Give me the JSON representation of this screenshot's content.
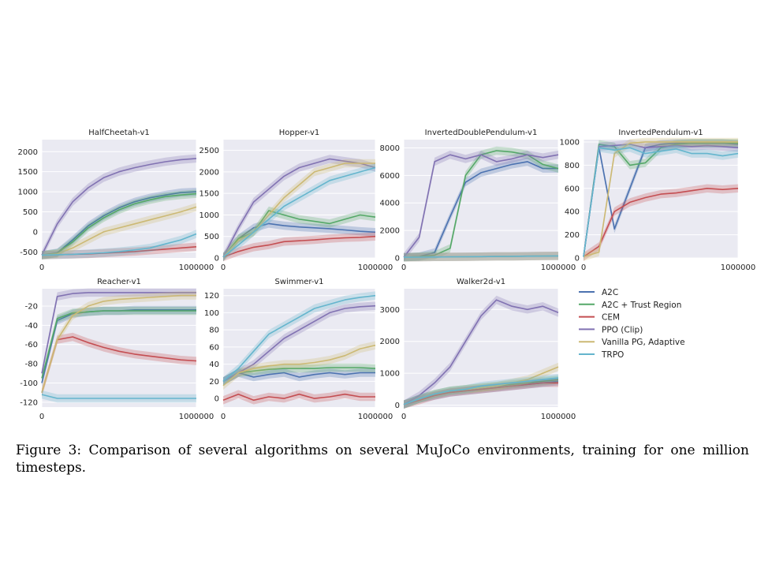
{
  "figure": {
    "caption": "Figure 3: Comparison of several algorithms on several MuJoCo environments, training for one million timesteps.",
    "legend": [
      {
        "name": "A2C",
        "color": "#4c72b0"
      },
      {
        "name": "A2C + Trust Region",
        "color": "#55a868"
      },
      {
        "name": "CEM",
        "color": "#c44e52"
      },
      {
        "name": "PPO (Clip)",
        "color": "#8172b2"
      },
      {
        "name": "Vanilla PG, Adaptive",
        "color": "#ccb974"
      },
      {
        "name": "TRPO",
        "color": "#64b5cd"
      }
    ],
    "colors": {
      "panel_bg": "#eaeaf2",
      "grid": "#ffffff",
      "text": "#222222"
    }
  },
  "chart_data": [
    {
      "type": "line",
      "title": "HalfCheetah-v1",
      "xlim": [
        0,
        1000000
      ],
      "xticks": [
        0,
        1000000
      ],
      "ylim": [
        -650,
        2300
      ],
      "yticks": [
        -500,
        0,
        500,
        1000,
        1500,
        2000
      ],
      "x": [
        0,
        100000,
        200000,
        300000,
        400000,
        500000,
        600000,
        700000,
        800000,
        900000,
        1000000
      ],
      "series": [
        {
          "name": "A2C",
          "values": [
            -580,
            -520,
            -200,
            150,
            400,
            600,
            750,
            850,
            920,
            980,
            1000
          ]
        },
        {
          "name": "A2C + Trust Region",
          "values": [
            -580,
            -530,
            -250,
            100,
            350,
            550,
            700,
            800,
            880,
            920,
            950
          ]
        },
        {
          "name": "CEM",
          "values": [
            -580,
            -570,
            -560,
            -550,
            -530,
            -510,
            -490,
            -460,
            -430,
            -400,
            -370
          ]
        },
        {
          "name": "PPO (Clip)",
          "values": [
            -580,
            200,
            750,
            1100,
            1350,
            1500,
            1600,
            1680,
            1750,
            1800,
            1830
          ]
        },
        {
          "name": "Vanilla PG, Adaptive",
          "values": [
            -580,
            -550,
            -400,
            -200,
            0,
            100,
            200,
            300,
            400,
            500,
            620
          ]
        },
        {
          "name": "TRPO",
          "values": [
            -580,
            -570,
            -560,
            -540,
            -520,
            -490,
            -450,
            -400,
            -300,
            -200,
            -50
          ]
        }
      ]
    },
    {
      "type": "line",
      "title": "Hopper-v1",
      "xlim": [
        0,
        1000000
      ],
      "xticks": [
        0,
        1000000
      ],
      "ylim": [
        0,
        2750
      ],
      "yticks": [
        0,
        500,
        1000,
        1500,
        2000,
        2500
      ],
      "x": [
        0,
        100000,
        200000,
        300000,
        400000,
        500000,
        600000,
        700000,
        800000,
        900000,
        1000000
      ],
      "series": [
        {
          "name": "A2C",
          "values": [
            20,
            450,
            700,
            800,
            750,
            720,
            700,
            680,
            650,
            620,
            600
          ]
        },
        {
          "name": "A2C + Trust Region",
          "values": [
            20,
            450,
            600,
            1100,
            1000,
            900,
            850,
            800,
            900,
            1000,
            950
          ]
        },
        {
          "name": "CEM",
          "values": [
            20,
            150,
            250,
            300,
            380,
            400,
            420,
            450,
            470,
            480,
            500
          ]
        },
        {
          "name": "PPO (Clip)",
          "values": [
            20,
            700,
            1300,
            1600,
            1900,
            2100,
            2200,
            2300,
            2250,
            2200,
            2100
          ]
        },
        {
          "name": "Vanilla PG, Adaptive",
          "values": [
            20,
            400,
            600,
            1000,
            1400,
            1700,
            2000,
            2100,
            2200,
            2200,
            2200
          ]
        },
        {
          "name": "TRPO",
          "values": [
            20,
            300,
            600,
            900,
            1200,
            1400,
            1600,
            1800,
            1900,
            2000,
            2100
          ]
        }
      ]
    },
    {
      "type": "line",
      "title": "InvertedDoublePendulum-v1",
      "xlim": [
        0,
        1000000
      ],
      "xticks": [
        0,
        1000000
      ],
      "ylim": [
        0,
        8600
      ],
      "yticks": [
        0,
        2000,
        4000,
        6000,
        8000
      ],
      "x": [
        0,
        100000,
        200000,
        300000,
        400000,
        500000,
        600000,
        700000,
        800000,
        900000,
        1000000
      ],
      "series": [
        {
          "name": "A2C",
          "values": [
            50,
            100,
            400,
            3000,
            5500,
            6200,
            6500,
            6800,
            7000,
            6500,
            6500
          ]
        },
        {
          "name": "A2C + Trust Region",
          "values": [
            50,
            100,
            200,
            700,
            6000,
            7500,
            7800,
            7700,
            7500,
            6800,
            6500
          ]
        },
        {
          "name": "CEM",
          "values": [
            50,
            60,
            70,
            80,
            90,
            100,
            110,
            120,
            130,
            140,
            150
          ]
        },
        {
          "name": "PPO (Clip)",
          "values": [
            50,
            1500,
            7000,
            7500,
            7200,
            7500,
            7000,
            7200,
            7500,
            7300,
            7500
          ]
        },
        {
          "name": "Vanilla PG, Adaptive",
          "values": [
            50,
            60,
            70,
            80,
            90,
            100,
            110,
            120,
            130,
            140,
            150
          ]
        },
        {
          "name": "TRPO",
          "values": [
            50,
            60,
            70,
            80,
            90,
            100,
            110,
            120,
            130,
            140,
            150
          ]
        }
      ]
    },
    {
      "type": "line",
      "title": "InvertedPendulum-v1",
      "xlim": [
        0,
        1000000
      ],
      "xticks": [
        0,
        1000000
      ],
      "ylim": [
        0,
        1020
      ],
      "yticks": [
        0,
        200,
        400,
        600,
        800,
        1000
      ],
      "x": [
        0,
        100000,
        200000,
        300000,
        400000,
        500000,
        600000,
        700000,
        800000,
        900000,
        1000000
      ],
      "series": [
        {
          "name": "A2C",
          "values": [
            10,
            950,
            250,
            600,
            950,
            980,
            990,
            990,
            990,
            990,
            980
          ]
        },
        {
          "name": "A2C + Trust Region",
          "values": [
            10,
            980,
            960,
            800,
            820,
            950,
            980,
            990,
            990,
            990,
            990
          ]
        },
        {
          "name": "CEM",
          "values": [
            10,
            100,
            400,
            480,
            520,
            550,
            560,
            580,
            600,
            590,
            600
          ]
        },
        {
          "name": "PPO (Clip)",
          "values": [
            10,
            960,
            970,
            980,
            950,
            960,
            970,
            960,
            970,
            960,
            950
          ]
        },
        {
          "name": "Vanilla PG, Adaptive",
          "values": [
            10,
            50,
            900,
            990,
            1000,
            1000,
            1000,
            1000,
            1000,
            1000,
            1000
          ]
        },
        {
          "name": "TRPO",
          "values": [
            10,
            950,
            930,
            950,
            900,
            920,
            940,
            900,
            900,
            880,
            900
          ]
        }
      ]
    },
    {
      "type": "line",
      "title": "Reacher-v1",
      "xlim": [
        0,
        1000000
      ],
      "xticks": [
        0,
        1000000
      ],
      "ylim": [
        -125,
        -2
      ],
      "yticks": [
        -120,
        -100,
        -80,
        -60,
        -40,
        -20
      ],
      "x": [
        0,
        100000,
        200000,
        300000,
        400000,
        500000,
        600000,
        700000,
        800000,
        900000,
        1000000
      ],
      "series": [
        {
          "name": "A2C",
          "values": [
            -100,
            -35,
            -28,
            -26,
            -25,
            -25,
            -24,
            -24,
            -24,
            -24,
            -24
          ]
        },
        {
          "name": "A2C + Trust Region",
          "values": [
            -95,
            -33,
            -27,
            -26,
            -25,
            -25,
            -25,
            -25,
            -25,
            -25,
            -25
          ]
        },
        {
          "name": "CEM",
          "values": [
            -110,
            -55,
            -52,
            -58,
            -63,
            -67,
            -70,
            -72,
            -74,
            -76,
            -77
          ]
        },
        {
          "name": "PPO (Clip)",
          "values": [
            -90,
            -10,
            -7,
            -6,
            -6,
            -6,
            -6,
            -6,
            -6,
            -6,
            -6
          ]
        },
        {
          "name": "Vanilla PG, Adaptive",
          "values": [
            -110,
            -55,
            -30,
            -20,
            -15,
            -13,
            -12,
            -11,
            -10,
            -9,
            -9
          ]
        },
        {
          "name": "TRPO",
          "values": [
            -112,
            -116,
            -116,
            -116,
            -116,
            -116,
            -116,
            -116,
            -116,
            -116,
            -116
          ]
        }
      ]
    },
    {
      "type": "line",
      "title": "Swimmer-v1",
      "xlim": [
        0,
        1000000
      ],
      "xticks": [
        0,
        1000000
      ],
      "ylim": [
        -10,
        128
      ],
      "yticks": [
        0,
        20,
        40,
        60,
        80,
        100,
        120
      ],
      "x": [
        0,
        100000,
        200000,
        300000,
        400000,
        500000,
        600000,
        700000,
        800000,
        900000,
        1000000
      ],
      "series": [
        {
          "name": "A2C",
          "values": [
            20,
            30,
            25,
            28,
            30,
            25,
            28,
            30,
            28,
            30,
            30
          ]
        },
        {
          "name": "A2C + Trust Region",
          "values": [
            20,
            30,
            32,
            34,
            35,
            35,
            35,
            36,
            36,
            36,
            35
          ]
        },
        {
          "name": "CEM",
          "values": [
            -2,
            5,
            -2,
            2,
            0,
            5,
            0,
            2,
            5,
            2,
            2
          ]
        },
        {
          "name": "PPO (Clip)",
          "values": [
            20,
            30,
            40,
            55,
            70,
            80,
            90,
            100,
            105,
            107,
            108
          ]
        },
        {
          "name": "Vanilla PG, Adaptive",
          "values": [
            15,
            30,
            35,
            38,
            40,
            40,
            42,
            45,
            50,
            58,
            62
          ]
        },
        {
          "name": "TRPO",
          "values": [
            20,
            35,
            55,
            75,
            85,
            95,
            105,
            110,
            115,
            118,
            120
          ]
        }
      ]
    },
    {
      "type": "line",
      "title": "Walker2d-v1",
      "xlim": [
        0,
        1000000
      ],
      "xticks": [
        0,
        1000000
      ],
      "ylim": [
        -60,
        3650
      ],
      "yticks": [
        0,
        1000,
        2000,
        3000
      ],
      "x": [
        0,
        100000,
        200000,
        300000,
        400000,
        500000,
        600000,
        700000,
        800000,
        900000,
        1000000
      ],
      "series": [
        {
          "name": "A2C",
          "values": [
            20,
            200,
            300,
            400,
            450,
            500,
            550,
            600,
            650,
            700,
            750
          ]
        },
        {
          "name": "A2C + Trust Region",
          "values": [
            20,
            200,
            350,
            450,
            500,
            550,
            600,
            650,
            700,
            750,
            800
          ]
        },
        {
          "name": "CEM",
          "values": [
            20,
            150,
            300,
            400,
            450,
            500,
            550,
            600,
            650,
            700,
            700
          ]
        },
        {
          "name": "PPO (Clip)",
          "values": [
            20,
            300,
            700,
            1200,
            2000,
            2800,
            3300,
            3100,
            3000,
            3100,
            2900
          ]
        },
        {
          "name": "Vanilla PG, Adaptive",
          "values": [
            20,
            200,
            350,
            450,
            500,
            550,
            600,
            700,
            800,
            1000,
            1200
          ]
        },
        {
          "name": "TRPO",
          "values": [
            20,
            200,
            350,
            450,
            500,
            600,
            650,
            700,
            750,
            800,
            850
          ]
        }
      ]
    }
  ]
}
